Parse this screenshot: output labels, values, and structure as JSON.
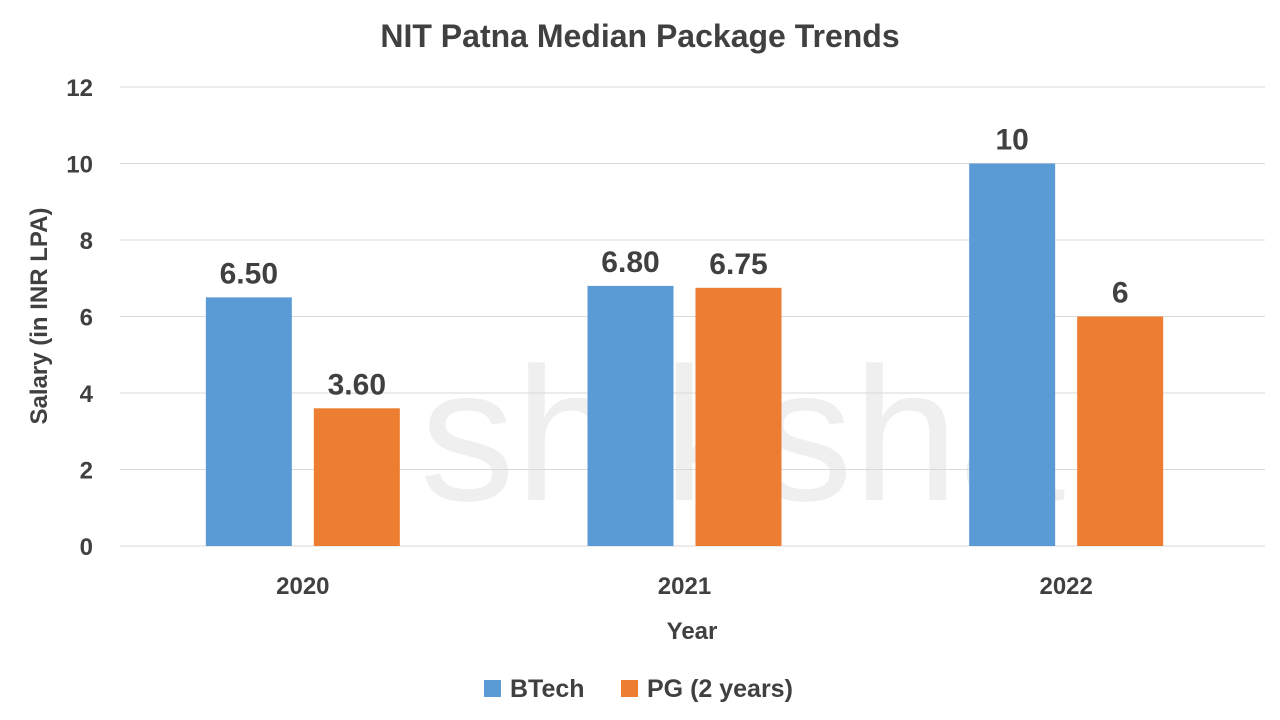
{
  "chart_data": {
    "type": "bar",
    "title": "NIT Patna Median Package Trends",
    "xlabel": "Year",
    "ylabel": "Salary (in INR LPA)",
    "categories": [
      "2020",
      "2021",
      "2022"
    ],
    "series": [
      {
        "name": "BTech",
        "color": "#5B9BD5",
        "values": [
          6.5,
          6.8,
          10
        ],
        "labels": [
          "6.50",
          "6.80",
          "10"
        ]
      },
      {
        "name": "PG (2 years)",
        "color": "#ED7D31",
        "values": [
          3.6,
          6.75,
          6
        ],
        "labels": [
          "3.60",
          "6.75",
          "6"
        ]
      }
    ],
    "ylim": [
      0,
      12
    ],
    "yticks": [
      0,
      2,
      4,
      6,
      8,
      10,
      12
    ],
    "grid": true,
    "legend": "bottom"
  },
  "watermark": "shiksha"
}
